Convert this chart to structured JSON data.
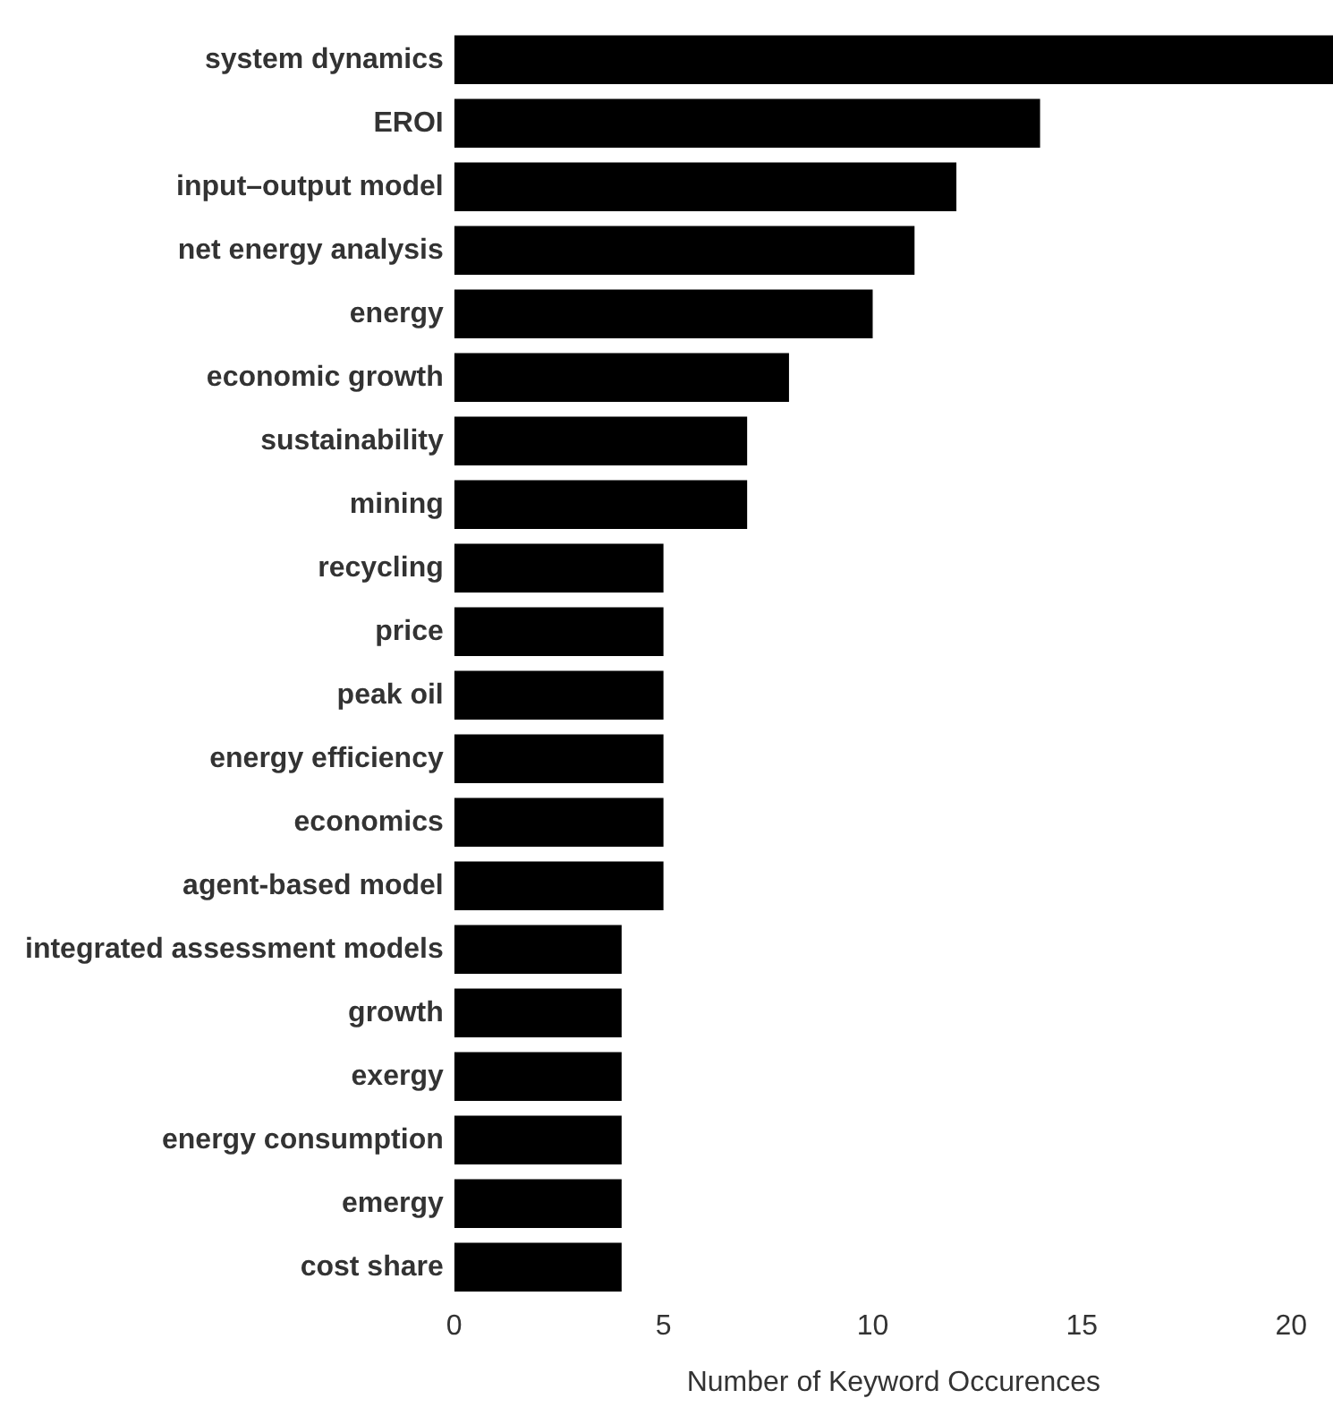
{
  "chart_data": {
    "type": "bar",
    "orientation": "horizontal",
    "xlabel": "Number of Keyword Occurences",
    "categories": [
      "system dynamics",
      "EROI",
      "input–output model",
      "net energy analysis",
      "energy",
      "economic growth",
      "sustainability",
      "mining",
      "recycling",
      "price",
      "peak oil",
      "energy efficiency",
      "economics",
      "agent-based model",
      "integrated assessment models",
      "growth",
      "exergy",
      "energy consumption",
      "emergy",
      "cost share"
    ],
    "values": [
      21,
      14,
      12,
      11,
      10,
      8,
      7,
      7,
      5,
      5,
      5,
      5,
      5,
      5,
      4,
      4,
      4,
      4,
      4,
      4
    ],
    "color": "#000000",
    "xlim": [
      0,
      21
    ],
    "xticks": [
      0,
      5,
      10,
      15,
      20
    ],
    "grid": false,
    "legend": false
  }
}
